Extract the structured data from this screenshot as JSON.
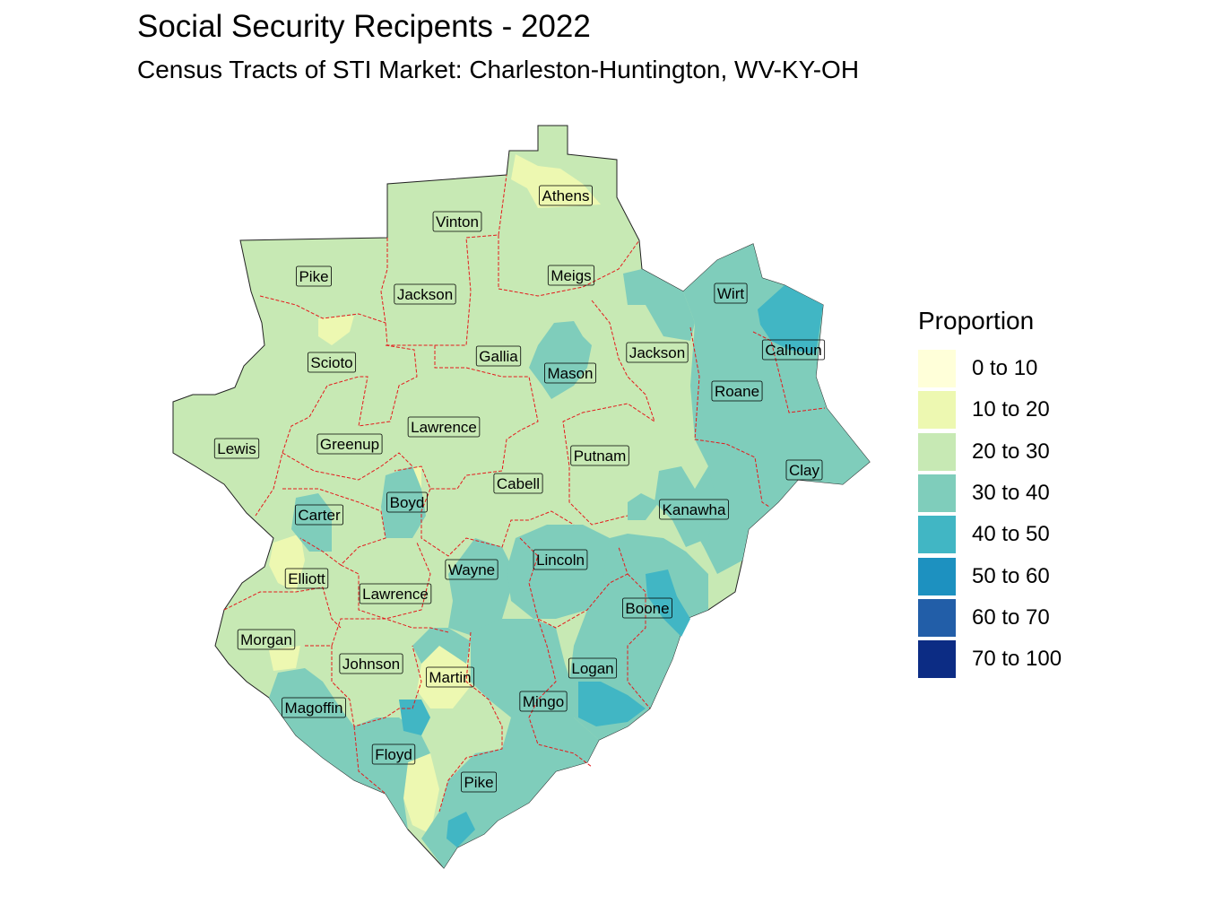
{
  "title": "Social Security Recipents - 2022",
  "subtitle": "Census Tracts of STI Market: Charleston-Huntington, WV-KY-OH",
  "legend": {
    "title": "Proportion",
    "items": [
      {
        "label": "0 to 10",
        "color": "#ffffd9"
      },
      {
        "label": "10 to 20",
        "color": "#edf8b1"
      },
      {
        "label": "20 to 30",
        "color": "#c7e9b4"
      },
      {
        "label": "30 to 40",
        "color": "#7fcdbb"
      },
      {
        "label": "40 to 50",
        "color": "#41b6c4"
      },
      {
        "label": "50 to 60",
        "color": "#1d91c0"
      },
      {
        "label": "60 to 70",
        "color": "#225ea8"
      },
      {
        "label": "70 to 100",
        "color": "#0c2c84"
      }
    ]
  },
  "county_border_color": "#e41a1c",
  "counties": [
    {
      "name": "Athens",
      "class": "20 to 30"
    },
    {
      "name": "Vinton",
      "class": "20 to 30"
    },
    {
      "name": "Pike",
      "class": "20 to 30"
    },
    {
      "name": "Jackson",
      "class": "20 to 30"
    },
    {
      "name": "Meigs",
      "class": "20 to 30"
    },
    {
      "name": "Wirt",
      "class": "30 to 40"
    },
    {
      "name": "Calhoun",
      "class": "40 to 50"
    },
    {
      "name": "Scioto",
      "class": "20 to 30"
    },
    {
      "name": "Gallia",
      "class": "20 to 30"
    },
    {
      "name": "Mason",
      "class": "20 to 30"
    },
    {
      "name": "Jackson",
      "class": "20 to 30"
    },
    {
      "name": "Roane",
      "class": "30 to 40"
    },
    {
      "name": "Lewis",
      "class": "20 to 30"
    },
    {
      "name": "Greenup",
      "class": "20 to 30"
    },
    {
      "name": "Lawrence",
      "class": "20 to 30"
    },
    {
      "name": "Putnam",
      "class": "20 to 30"
    },
    {
      "name": "Clay",
      "class": "30 to 40"
    },
    {
      "name": "Cabell",
      "class": "20 to 30"
    },
    {
      "name": "Boyd",
      "class": "20 to 30"
    },
    {
      "name": "Carter",
      "class": "20 to 30"
    },
    {
      "name": "Kanawha",
      "class": "30 to 40"
    },
    {
      "name": "Elliott",
      "class": "20 to 30"
    },
    {
      "name": "Wayne",
      "class": "20 to 30"
    },
    {
      "name": "Lincoln",
      "class": "30 to 40"
    },
    {
      "name": "Lawrence",
      "class": "20 to 30"
    },
    {
      "name": "Boone",
      "class": "30 to 40"
    },
    {
      "name": "Morgan",
      "class": "20 to 30"
    },
    {
      "name": "Johnson",
      "class": "20 to 30"
    },
    {
      "name": "Martin",
      "class": "30 to 40"
    },
    {
      "name": "Logan",
      "class": "30 to 40"
    },
    {
      "name": "Mingo",
      "class": "30 to 40"
    },
    {
      "name": "Magoffin",
      "class": "30 to 40"
    },
    {
      "name": "Floyd",
      "class": "30 to 40"
    },
    {
      "name": "Pike",
      "class": "30 to 40"
    }
  ]
}
